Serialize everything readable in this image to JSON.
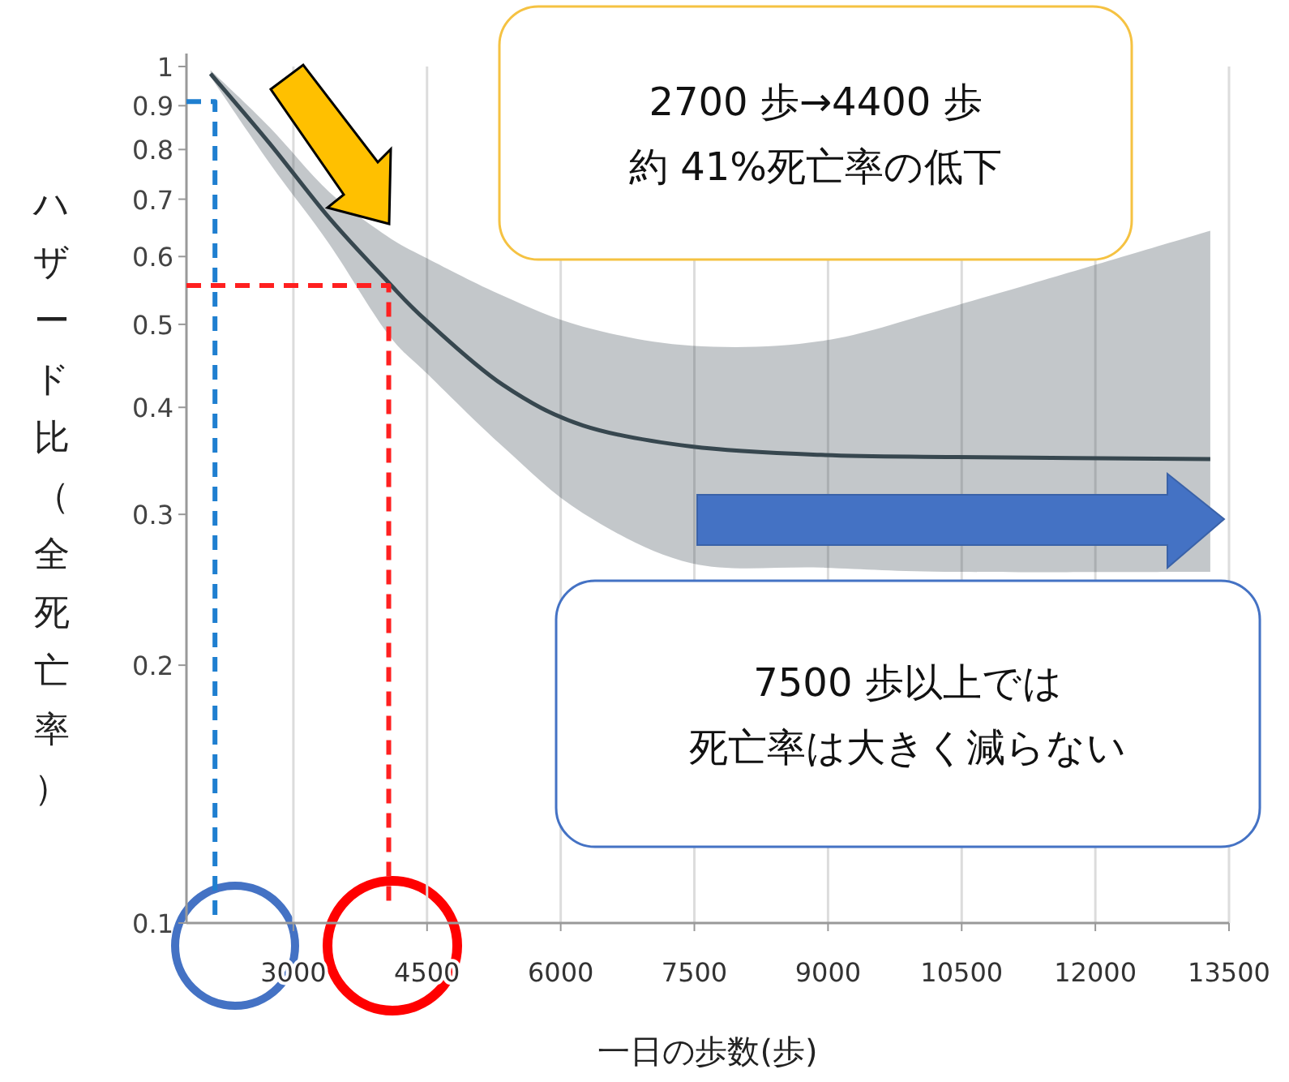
{
  "chart_data": {
    "type": "line",
    "xlabel": "一日の歩数(歩)",
    "ylabel": "ハザード比（全死亡率）",
    "log": true,
    "grid": "x",
    "xlim": [
      1800,
      13500
    ],
    "xticks": [
      3000,
      4500,
      6000,
      7500,
      9000,
      10500,
      12000,
      13500
    ],
    "ylim": [
      0.1,
      1
    ],
    "yticks": [
      0.1,
      0.2,
      0.3,
      0.4,
      0.5,
      0.6,
      0.7,
      0.8,
      0.9,
      1
    ],
    "series": [
      {
        "color": "#37474f",
        "line_style": "solid",
        "x": [
          2070,
          2730,
          3400,
          4050,
          4500,
          5350,
          6250,
          7470,
          8920,
          10440,
          13290
        ],
        "values": [
          0.981,
          0.814,
          0.666,
          0.562,
          0.504,
          0.425,
          0.381,
          0.36,
          0.352,
          0.35,
          0.348
        ],
        "lower": [
          0.973,
          0.772,
          0.621,
          0.489,
          0.438,
          0.36,
          0.301,
          0.263,
          0.26,
          0.257,
          0.257
        ],
        "upper": [
          0.99,
          0.85,
          0.714,
          0.634,
          0.597,
          0.54,
          0.497,
          0.472,
          0.478,
          0.526,
          0.643
        ]
      },
      {
        "color": "#1f7fd0",
        "line_style": "dashed",
        "x": [
          1800,
          2120,
          2120
        ],
        "values": [
          0.91,
          0.91,
          0.1
        ]
      },
      {
        "color": "#ff2020",
        "line_style": "dashed",
        "x": [
          1800,
          4070,
          4070
        ],
        "values": [
          0.555,
          0.555,
          0.105
        ]
      }
    ],
    "annotations": [
      "2700 歩→4400 歩",
      "約 41%死亡率の低下",
      "7500 歩以上では",
      "死亡率は大きく減らない"
    ]
  }
}
